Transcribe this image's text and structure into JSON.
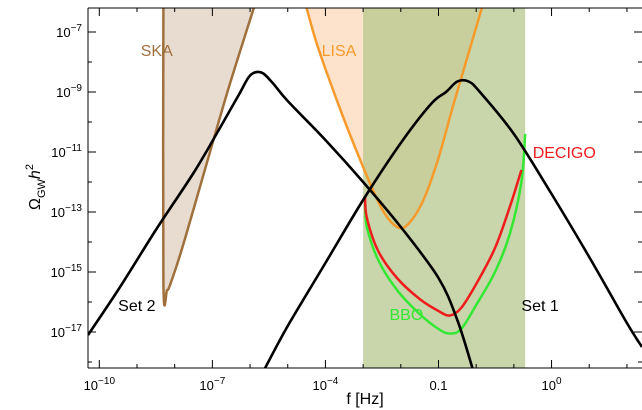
{
  "chart_data": {
    "type": "line",
    "xlabel": "f [Hz]",
    "ylabel": "ΩGWh2",
    "x_scale": "log10",
    "y_scale": "log10",
    "xlim": [
      -10.3,
      4.4
    ],
    "ylim": [
      -18.2,
      -6.2
    ],
    "x_ticks": [
      {
        "exp": -10,
        "label": "10−10"
      },
      {
        "exp": -7,
        "label": "10−7"
      },
      {
        "exp": -4,
        "label": "10−4"
      },
      {
        "exp": -1,
        "label": "0.1"
      },
      {
        "exp": 2,
        "label": "100"
      }
    ],
    "y_ticks": [
      -17,
      -15,
      -13,
      -11,
      -9,
      -7
    ],
    "regions": [
      {
        "name": "SKA",
        "label": "SKA",
        "fill": "#e8dbd0",
        "outline": "#a0703c",
        "label_pos": [
          -8.9,
          -7.8
        ],
        "label_color": "#a0703c",
        "points": [
          [
            -8.3,
            -6.2
          ],
          [
            -8.3,
            -15.35
          ],
          [
            -8.2,
            -15.6
          ],
          [
            -8.1,
            -15.35
          ],
          [
            -7.8,
            -14.2
          ],
          [
            -7.2,
            -11.6
          ],
          [
            -6.6,
            -9
          ],
          [
            -5.9,
            -6.2
          ]
        ]
      },
      {
        "name": "LISA",
        "label": "LISA",
        "fill": "#fde3cb",
        "outline": "#f59a2b",
        "label_pos": [
          -4.1,
          -7.8
        ],
        "label_color": "#f59a2b",
        "points": [
          [
            -4.5,
            -6.2
          ],
          [
            -4.2,
            -7.5
          ],
          [
            -3.6,
            -9.6
          ],
          [
            -3,
            -11.5
          ],
          [
            -2.5,
            -12.9
          ],
          [
            -2.1,
            -13.5
          ],
          [
            -1.8,
            -13.4
          ],
          [
            -1.4,
            -12.6
          ],
          [
            -1,
            -11.2
          ],
          [
            -0.6,
            -9.4
          ],
          [
            -0.2,
            -7.7
          ],
          [
            0.15,
            -6.2
          ]
        ]
      },
      {
        "name": "BBO",
        "label": "BBO",
        "fill": "#b7c78d",
        "fill_opacity": 0.75,
        "outline": "#33e833",
        "label_pos": [
          -2.3,
          -16.6
        ],
        "label_color": "#33e833",
        "rect": [
          -3,
          1.3,
          -18.2,
          -6.2
        ],
        "points": [
          [
            -2.95,
            -12.7
          ],
          [
            -2.9,
            -13.5
          ],
          [
            -2.6,
            -14.6
          ],
          [
            -2.1,
            -15.6
          ],
          [
            -1.5,
            -16.4
          ],
          [
            -1,
            -16.9
          ],
          [
            -0.7,
            -17.05
          ],
          [
            -0.4,
            -16.9
          ],
          [
            0,
            -16.1
          ],
          [
            0.5,
            -15
          ],
          [
            0.9,
            -13.7
          ],
          [
            1.2,
            -12
          ],
          [
            1.3,
            -10.4
          ]
        ]
      },
      {
        "name": "DECIGO",
        "label": "DECIGO",
        "outline": "#ee1c1c",
        "label_pos": [
          1.5,
          -11.2
        ],
        "label_color": "#ee1c1c",
        "points": [
          [
            -2.95,
            -12.5
          ],
          [
            -2.9,
            -13.2
          ],
          [
            -2.6,
            -14.3
          ],
          [
            -2.1,
            -15.2
          ],
          [
            -1.5,
            -15.9
          ],
          [
            -1,
            -16.3
          ],
          [
            -0.7,
            -16.45
          ],
          [
            -0.4,
            -16.2
          ],
          [
            0,
            -15.4
          ],
          [
            0.5,
            -14.2
          ],
          [
            0.9,
            -12.8
          ],
          [
            1.2,
            -11.6
          ]
        ]
      }
    ],
    "series": [
      {
        "name": "Set 2",
        "label": "Set 2",
        "label_pos": [
          -9.5,
          -16.3
        ],
        "color": "#000000",
        "x": [
          -10.3,
          -9.5,
          -8.5,
          -7.5,
          -6.8,
          -6.3,
          -6,
          -5.7,
          -5.4,
          -5,
          -4,
          -3,
          -2,
          -1,
          -0.5,
          -0.1
        ],
        "y": [
          -17.1,
          -15.6,
          -13.6,
          -11.7,
          -10.2,
          -9.1,
          -8.45,
          -8.35,
          -8.7,
          -9.3,
          -10.6,
          -12,
          -13.5,
          -15.2,
          -16.6,
          -18.2
        ]
      },
      {
        "name": "Set 1",
        "label": "Set 1",
        "label_pos": [
          1.2,
          -16.3
        ],
        "color": "#000000",
        "x": [
          -5.6,
          -5,
          -4,
          -3,
          -2,
          -1.2,
          -0.8,
          -0.5,
          -0.2,
          0.1,
          1,
          2,
          3,
          4,
          4.4
        ],
        "y": [
          -18.2,
          -16.8,
          -14.7,
          -12.6,
          -10.7,
          -9.4,
          -9.0,
          -8.65,
          -8.65,
          -9,
          -10.4,
          -12.4,
          -14.5,
          -16.7,
          -17.5
        ]
      }
    ]
  }
}
